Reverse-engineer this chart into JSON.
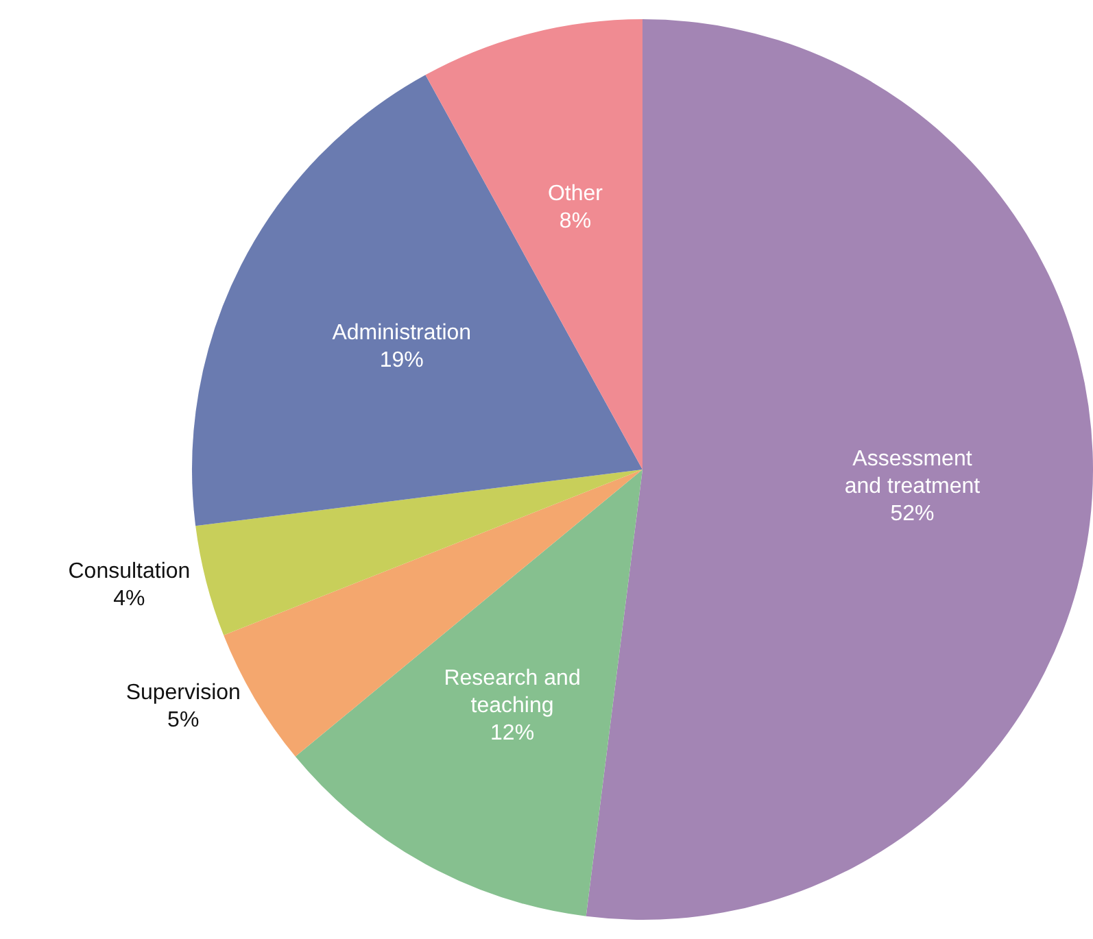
{
  "chart_data": {
    "type": "pie",
    "categories": [
      "Assessment and treatment",
      "Research and teaching",
      "Supervision",
      "Consultation",
      "Administration",
      "Other"
    ],
    "values": [
      52,
      12,
      5,
      4,
      19,
      8
    ],
    "colors": [
      "#a385b4",
      "#86c08f",
      "#f4a76e",
      "#c8cf5a",
      "#6a7bb0",
      "#f08b92"
    ],
    "value_labels": [
      "52%",
      "12%",
      "5%",
      "4%",
      "19%",
      "8%"
    ],
    "legend": false
  }
}
